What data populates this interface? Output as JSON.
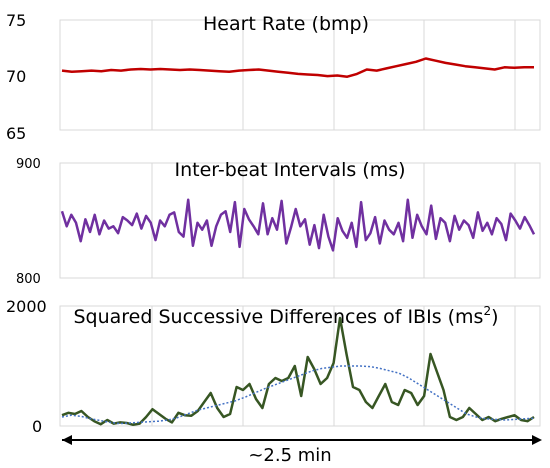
{
  "chart_data": [
    {
      "type": "line",
      "title": "Heart Rate (bmp)",
      "ylim": [
        65,
        75
      ],
      "yticks": [
        "75",
        "70",
        "65"
      ],
      "grid": true,
      "series": [
        {
          "color": "#c00000",
          "values": [
            70.4,
            70.3,
            70.35,
            70.4,
            70.35,
            70.45,
            70.4,
            70.5,
            70.55,
            70.5,
            70.55,
            70.5,
            70.45,
            70.5,
            70.45,
            70.4,
            70.35,
            70.3,
            70.4,
            70.45,
            70.5,
            70.4,
            70.3,
            70.2,
            70.1,
            70.05,
            70.0,
            69.9,
            69.95,
            69.85,
            70.1,
            70.5,
            70.4,
            70.6,
            70.8,
            71.0,
            71.2,
            71.5,
            71.3,
            71.1,
            70.95,
            70.8,
            70.7,
            70.6,
            70.5,
            70.7,
            70.65,
            70.7,
            70.7
          ]
        }
      ]
    },
    {
      "type": "line",
      "title": "Inter-beat Intervals (ms)",
      "ylim": [
        800,
        900
      ],
      "yticks": [
        "900",
        "800"
      ],
      "grid": true,
      "series": [
        {
          "color": "#7030a0",
          "values": [
            858,
            845,
            855,
            848,
            832,
            851,
            840,
            855,
            838,
            850,
            843,
            845,
            839,
            853,
            850,
            846,
            856,
            843,
            854,
            848,
            833,
            850,
            845,
            855,
            857,
            840,
            836,
            868,
            828,
            848,
            842,
            850,
            828,
            845,
            855,
            858,
            840,
            866,
            827,
            860,
            851,
            845,
            838,
            865,
            838,
            852,
            842,
            867,
            830,
            844,
            860,
            845,
            851,
            829,
            846,
            826,
            855,
            836,
            824,
            852,
            841,
            835,
            848,
            827,
            866,
            833,
            839,
            853,
            830,
            850,
            842,
            838,
            848,
            832,
            868,
            835,
            855,
            845,
            838,
            863,
            834,
            852,
            848,
            832,
            854,
            842,
            850,
            846,
            835,
            857,
            841,
            848,
            838,
            852,
            847,
            833,
            856,
            850,
            843,
            853,
            846,
            838
          ]
        }
      ]
    },
    {
      "type": "line",
      "title": "Squared Successive Differences of IBIs (ms",
      "title_superscript": "2",
      "title_end": ")",
      "ylim": [
        0,
        2000
      ],
      "yticks": [
        "2000",
        "0"
      ],
      "grid": true,
      "series": [
        {
          "color": "#375623",
          "style": "solid",
          "values": [
            180,
            220,
            200,
            250,
            150,
            80,
            30,
            100,
            40,
            60,
            50,
            20,
            40,
            150,
            280,
            200,
            120,
            60,
            220,
            180,
            170,
            250,
            400,
            550,
            300,
            150,
            200,
            650,
            600,
            700,
            450,
            300,
            700,
            800,
            750,
            800,
            1000,
            500,
            1150,
            950,
            700,
            800,
            1050,
            1800,
            1200,
            650,
            600,
            400,
            300,
            500,
            700,
            400,
            350,
            600,
            550,
            350,
            500,
            1200,
            900,
            600,
            150,
            100,
            150,
            300,
            200,
            100,
            150,
            80,
            120,
            150,
            180,
            100,
            80,
            150
          ]
        },
        {
          "color": "#4472c4",
          "style": "dotted",
          "values": [
            150,
            180,
            160,
            120,
            90,
            60,
            40,
            50,
            60,
            70,
            80,
            100,
            140,
            200,
            260,
            300,
            340,
            380,
            420,
            480,
            550,
            620,
            680,
            740,
            800,
            860,
            920,
            960,
            980,
            1000,
            1000,
            1000,
            990,
            960,
            920,
            880,
            800,
            700,
            600,
            500,
            400,
            300,
            200,
            150,
            120,
            110,
            100,
            110,
            120,
            130
          ]
        }
      ]
    }
  ],
  "duration_label": "~2.5 min"
}
